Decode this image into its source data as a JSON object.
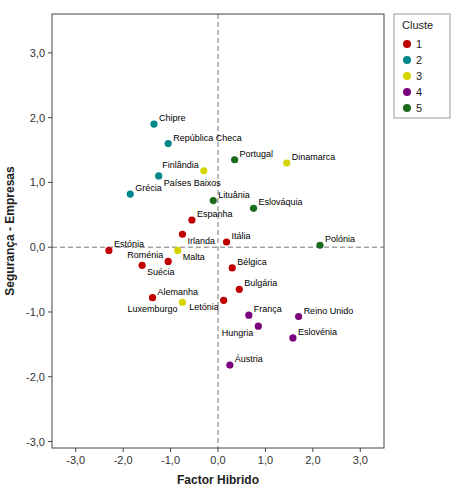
{
  "chart_data": {
    "type": "scatter",
    "xlabel": "Factor Hibrido",
    "ylabel": "Segurança - Empresas",
    "legend_title": "Cluste",
    "legend": "right",
    "grid": false,
    "xlim": [
      -3.5,
      3.5
    ],
    "ylim": [
      -3.1,
      3.6
    ],
    "xticks": [
      {
        "value": -3.0,
        "label": "-3,0"
      },
      {
        "value": -2.0,
        "label": "-2,0"
      },
      {
        "value": -1.0,
        "label": "-1,0"
      },
      {
        "value": 0.0,
        "label": "0,0"
      },
      {
        "value": 1.0,
        "label": "1,0"
      },
      {
        "value": 2.0,
        "label": "2,0"
      },
      {
        "value": 3.0,
        "label": "3,0"
      }
    ],
    "yticks": [
      {
        "value": -3.0,
        "label": "-3,0"
      },
      {
        "value": -2.0,
        "label": "-2,0"
      },
      {
        "value": -1.0,
        "label": "-1,0"
      },
      {
        "value": 0.0,
        "label": "0,0"
      },
      {
        "value": 1.0,
        "label": "1,0"
      },
      {
        "value": 2.0,
        "label": "2,0"
      },
      {
        "value": 3.0,
        "label": "3,0"
      }
    ],
    "series": [
      {
        "name": "1",
        "color": "#c00000",
        "labels": [
          "Espanha",
          "Irlanda",
          "Itália",
          "Estónia",
          "Suécia",
          "Roménia",
          "Bélgica",
          "Bulgária",
          "Alemanha",
          "Letónia"
        ],
        "x": [
          -0.55,
          -0.75,
          0.18,
          -2.3,
          -1.6,
          -1.05,
          0.3,
          0.45,
          -1.38,
          0.12
        ],
        "values": [
          0.42,
          0.2,
          0.08,
          -0.05,
          -0.28,
          -0.22,
          -0.32,
          -0.65,
          -0.78,
          -0.82
        ]
      },
      {
        "name": "2",
        "color": "#00868b",
        "labels": [
          "Chipre",
          "República Checa",
          "Grécia",
          "Países Baixos"
        ],
        "x": [
          -1.35,
          -1.05,
          -1.85,
          -1.25
        ],
        "values": [
          1.9,
          1.6,
          0.82,
          1.1
        ]
      },
      {
        "name": "3",
        "color": "#d4d400",
        "labels": [
          "Dinamarca",
          "Finlândia",
          "Malta",
          "Luxemburgo"
        ],
        "x": [
          1.45,
          -0.3,
          -0.85,
          -0.75
        ],
        "values": [
          1.3,
          1.18,
          -0.05,
          -0.85
        ]
      },
      {
        "name": "4",
        "color": "#7b007b",
        "labels": [
          "França",
          "Reino Unido",
          "Hungria",
          "Eslovénia",
          "Áustria"
        ],
        "x": [
          0.65,
          1.7,
          0.85,
          1.58,
          0.25
        ],
        "values": [
          -1.05,
          -1.07,
          -1.22,
          -1.4,
          -1.82
        ]
      },
      {
        "name": "5",
        "color": "#1a6b1a",
        "labels": [
          "Portugal",
          "Lituânia",
          "Eslováquia",
          "Polónia"
        ],
        "x": [
          0.35,
          -0.1,
          0.75,
          2.15
        ],
        "values": [
          1.35,
          0.72,
          0.6,
          0.03
        ]
      }
    ]
  }
}
